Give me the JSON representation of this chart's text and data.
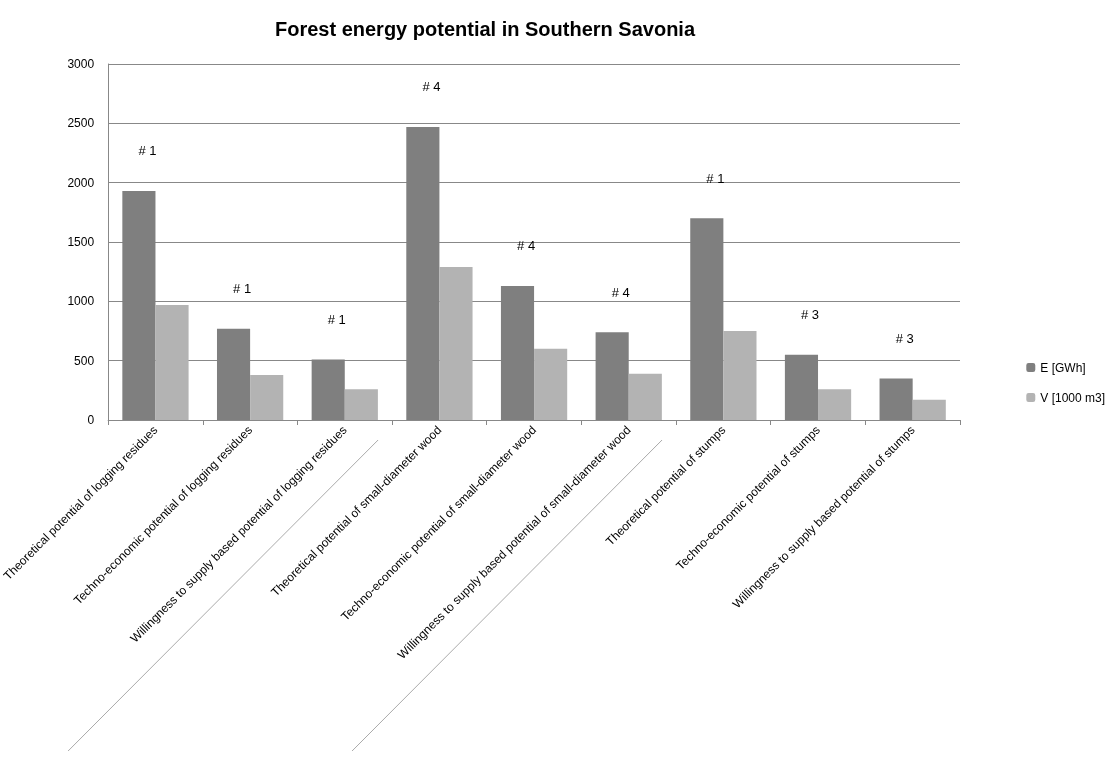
{
  "chart_data": {
    "type": "bar",
    "title": "Forest energy potential in Southern Savonia",
    "categories": [
      "Theoretical potential of logging residues",
      "Techno-economic potential of logging residues",
      "Willingness to supply based potential of logging residues",
      "Theoretical potential of small-diameter wood",
      "Techno-economic potential of small-diameter wood",
      "Willingness to supply based potential of small-diameter wood",
      "Theoretical potential of stumps",
      "Techno-economic potential of stumps",
      "Willingness to supply based potential of stumps"
    ],
    "series": [
      {
        "name": "E [GWh]",
        "color": "#7f7f7f",
        "values": [
          1930,
          770,
          510,
          2470,
          1130,
          740,
          1700,
          550,
          350
        ]
      },
      {
        "name": "V [1000 m3]",
        "color": "#b3b3b3",
        "values": [
          970,
          380,
          260,
          1290,
          600,
          390,
          750,
          260,
          170
        ]
      }
    ],
    "ylim": [
      0,
      3000
    ],
    "yticks": [
      0,
      500,
      1000,
      1500,
      2000,
      2500,
      3000
    ],
    "grid": "y",
    "legend": "right",
    "annotations": [
      "# 1",
      "# 1",
      "# 1",
      "# 4",
      "# 4",
      "# 4",
      "# 1",
      "# 3",
      "# 3"
    ]
  }
}
